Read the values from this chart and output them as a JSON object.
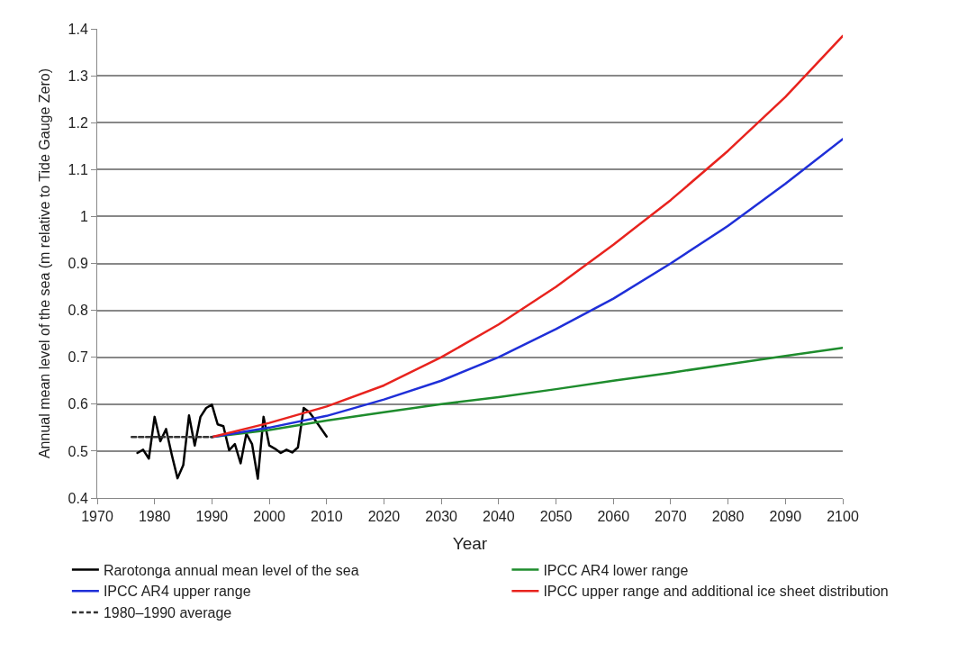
{
  "chart_data": {
    "type": "line",
    "xlabel": "Year",
    "ylabel": "Annual mean level of the sea (m relative to Tide Gauge Zero)",
    "xlim": [
      1970,
      2100
    ],
    "xticks": [
      1970,
      1980,
      1990,
      2000,
      2010,
      2020,
      2030,
      2040,
      2050,
      2060,
      2070,
      2080,
      2090,
      2100
    ],
    "ylim": [
      0.4,
      1.4
    ],
    "yticks": [
      0.4,
      0.5,
      0.6,
      0.7,
      0.8,
      0.9,
      1,
      1.1,
      1.2,
      1.3,
      1.4
    ],
    "grid": "y",
    "legend": "bottom",
    "marker": "none",
    "series": [
      {
        "name": "Rarotonga annual mean level of the sea",
        "color": "#000000",
        "x": [
          1977,
          1978,
          1979,
          1980,
          1981,
          1982,
          1983,
          1984,
          1985,
          1986,
          1987,
          1988,
          1989,
          1990,
          1991,
          1992,
          1993,
          1994,
          1995,
          1996,
          1997,
          1998,
          1999,
          2000,
          2001,
          2002,
          2003,
          2004,
          2005,
          2006,
          2007,
          2008,
          2010
        ],
        "values": [
          0.496,
          0.503,
          0.484,
          0.573,
          0.521,
          0.547,
          0.492,
          0.442,
          0.47,
          0.576,
          0.512,
          0.573,
          0.592,
          0.599,
          0.557,
          0.553,
          0.502,
          0.515,
          0.474,
          0.537,
          0.515,
          0.441,
          0.573,
          0.512,
          0.505,
          0.496,
          0.503,
          0.497,
          0.508,
          0.592,
          0.583,
          0.566,
          0.531
        ]
      },
      {
        "name": "IPCC AR4 lower range",
        "color": "#1e8c2d",
        "x": [
          1990,
          2000,
          2010,
          2020,
          2030,
          2040,
          2050,
          2060,
          2070,
          2080,
          2090,
          2100
        ],
        "values": [
          0.53,
          0.545,
          0.565,
          0.583,
          0.6,
          0.615,
          0.632,
          0.65,
          0.667,
          0.685,
          0.703,
          0.72
        ]
      },
      {
        "name": "IPCC AR4 upper range",
        "color": "#1f2fd8",
        "x": [
          1990,
          2000,
          2010,
          2020,
          2030,
          2040,
          2050,
          2060,
          2070,
          2080,
          2090,
          2100
        ],
        "values": [
          0.53,
          0.55,
          0.575,
          0.61,
          0.65,
          0.7,
          0.76,
          0.825,
          0.9,
          0.98,
          1.07,
          1.165
        ]
      },
      {
        "name": "IPCC upper range and additional ice sheet distribution",
        "color": "#e8231e",
        "x": [
          1990,
          2000,
          2010,
          2020,
          2030,
          2040,
          2050,
          2060,
          2070,
          2080,
          2090,
          2100
        ],
        "values": [
          0.53,
          0.56,
          0.595,
          0.64,
          0.7,
          0.77,
          0.85,
          0.94,
          1.035,
          1.14,
          1.255,
          1.385
        ]
      },
      {
        "name": "1980–1990 average",
        "color": "#333333",
        "line_style": "dashed",
        "x": [
          1976,
          1990
        ],
        "values": [
          0.53,
          0.53
        ]
      }
    ]
  }
}
